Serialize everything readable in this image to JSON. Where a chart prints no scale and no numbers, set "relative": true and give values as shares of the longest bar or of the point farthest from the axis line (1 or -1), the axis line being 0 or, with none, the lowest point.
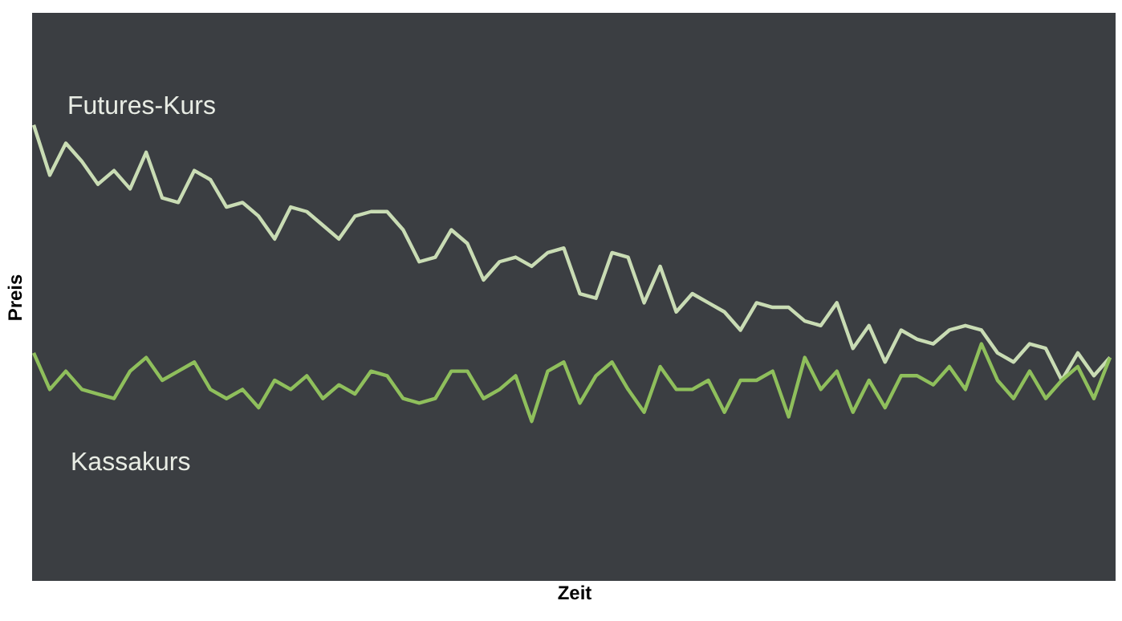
{
  "chart_data": {
    "type": "line",
    "relative": true,
    "xlabel": "Zeit",
    "ylabel": "Preis",
    "line_style": "solid",
    "categories": [
      null,
      null,
      null,
      null,
      null,
      null,
      null,
      null,
      null,
      null,
      null,
      null,
      null,
      null,
      null,
      null,
      null,
      null,
      null,
      null,
      null,
      null,
      null,
      null,
      null,
      null,
      null,
      null,
      null,
      null,
      null,
      null,
      null,
      null,
      null,
      null,
      null,
      null,
      null,
      null,
      null,
      null,
      null,
      null,
      null,
      null,
      null,
      null,
      null,
      null,
      null,
      null,
      null,
      null,
      null,
      null,
      null,
      null,
      null,
      null,
      null,
      null,
      null,
      null,
      null,
      null,
      null,
      null
    ],
    "series": [
      {
        "name": "Futures-Kurs",
        "color": "#c9dcb4",
        "values": [
          1,
          0.89,
          0.96,
          0.92,
          0.87,
          0.9,
          0.86,
          0.94,
          0.84,
          0.83,
          0.9,
          0.88,
          0.82,
          0.83,
          0.8,
          0.75,
          0.82,
          0.81,
          0.78,
          0.75,
          0.8,
          0.81,
          0.81,
          0.77,
          0.7,
          0.71,
          0.77,
          0.74,
          0.66,
          0.7,
          0.71,
          0.69,
          0.72,
          0.73,
          0.63,
          0.62,
          0.72,
          0.71,
          0.61,
          0.69,
          0.59,
          0.63,
          0.61,
          0.59,
          0.55,
          0.61,
          0.6,
          0.6,
          0.57,
          0.56,
          0.61,
          0.51,
          0.56,
          0.48,
          0.55,
          0.53,
          0.52,
          0.55,
          0.56,
          0.55,
          0.5,
          0.48,
          0.52,
          0.51,
          0.44,
          0.5,
          0.45,
          0.49
        ]
      },
      {
        "name": "Kassakurs",
        "color": "#8fbf5c",
        "values": [
          0.5,
          0.42,
          0.46,
          0.42,
          0.41,
          0.4,
          0.46,
          0.49,
          0.44,
          0.46,
          0.48,
          0.42,
          0.4,
          0.42,
          0.38,
          0.44,
          0.42,
          0.45,
          0.4,
          0.43,
          0.41,
          0.46,
          0.45,
          0.4,
          0.39,
          0.4,
          0.46,
          0.46,
          0.4,
          0.42,
          0.45,
          0.35,
          0.46,
          0.48,
          0.39,
          0.45,
          0.48,
          0.42,
          0.37,
          0.47,
          0.42,
          0.42,
          0.44,
          0.37,
          0.44,
          0.44,
          0.46,
          0.36,
          0.49,
          0.42,
          0.46,
          0.37,
          0.44,
          0.38,
          0.45,
          0.45,
          0.43,
          0.47,
          0.42,
          0.52,
          0.44,
          0.4,
          0.46,
          0.4,
          0.44,
          0.47,
          0.4,
          0.49
        ]
      }
    ]
  }
}
